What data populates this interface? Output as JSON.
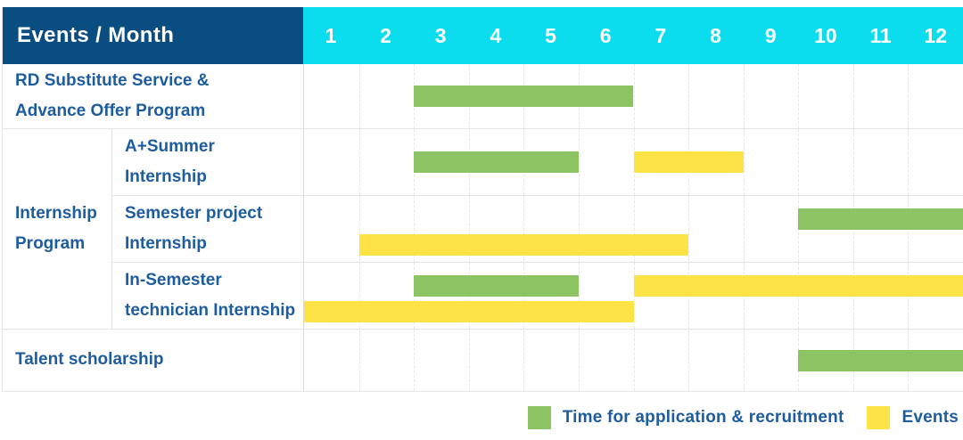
{
  "header": {
    "title": "Events / Month",
    "months": [
      "1",
      "2",
      "3",
      "4",
      "5",
      "6",
      "7",
      "8",
      "9",
      "10",
      "11",
      "12"
    ]
  },
  "colors": {
    "header_bg": "#0a4d81",
    "months_bg": "#0bdcee",
    "label_text": "#1d5c9e",
    "recruitment_green": "#8cc464",
    "event_yellow": "#fde345",
    "gridline": "#e6e6e6"
  },
  "labels": {
    "row_rd": "RD Substitute Service &\nAdvance Offer Program",
    "group_internship": "Internship\nProgram",
    "sub_a_summer": "A+Summer\nInternship",
    "sub_semester_project": "Semester project\nInternship",
    "sub_in_semester": "In-Semester\ntechnician Internship",
    "row_talent": "Talent scholarship"
  },
  "legend": {
    "recruitment": "Time for application & recruitment",
    "events": "Events"
  },
  "chart_data": {
    "type": "bar",
    "subtype": "gantt",
    "title": "Events / Month",
    "x_categories": [
      "1",
      "2",
      "3",
      "4",
      "5",
      "6",
      "7",
      "8",
      "9",
      "10",
      "11",
      "12"
    ],
    "x_range": [
      1,
      12
    ],
    "grid": true,
    "legend_position": "bottom-right",
    "series_kinds": {
      "recruitment": {
        "label": "Time for application & recruitment",
        "color": "#8cc464"
      },
      "event": {
        "label": "Events",
        "color": "#fde345"
      }
    },
    "rows": [
      {
        "label": "RD Substitute Service & Advance Offer Program",
        "group": null,
        "bars": [
          {
            "kind": "recruitment",
            "start_month": 3,
            "end_month": 6,
            "line": "center"
          }
        ]
      },
      {
        "label": "A+Summer Internship",
        "group": "Internship Program",
        "bars": [
          {
            "kind": "recruitment",
            "start_month": 3,
            "end_month": 5,
            "line": "center"
          },
          {
            "kind": "event",
            "start_month": 7,
            "end_month": 8,
            "line": "center"
          }
        ]
      },
      {
        "label": "Semester project Internship",
        "group": "Internship Program",
        "bars": [
          {
            "kind": "recruitment",
            "start_month": 10,
            "end_month": 12,
            "line": "top"
          },
          {
            "kind": "event",
            "start_month": 2,
            "end_month": 7,
            "line": "bottom"
          }
        ]
      },
      {
        "label": "In-Semester technician Internship",
        "group": "Internship Program",
        "bars": [
          {
            "kind": "recruitment",
            "start_month": 3,
            "end_month": 5,
            "line": "top"
          },
          {
            "kind": "event",
            "start_month": 7,
            "end_month": 12,
            "line": "top"
          },
          {
            "kind": "event",
            "start_month": 1,
            "end_month": 6,
            "line": "bottom"
          }
        ]
      },
      {
        "label": "Talent scholarship",
        "group": null,
        "bars": [
          {
            "kind": "recruitment",
            "start_month": 10,
            "end_month": 12,
            "line": "center"
          }
        ]
      }
    ]
  }
}
